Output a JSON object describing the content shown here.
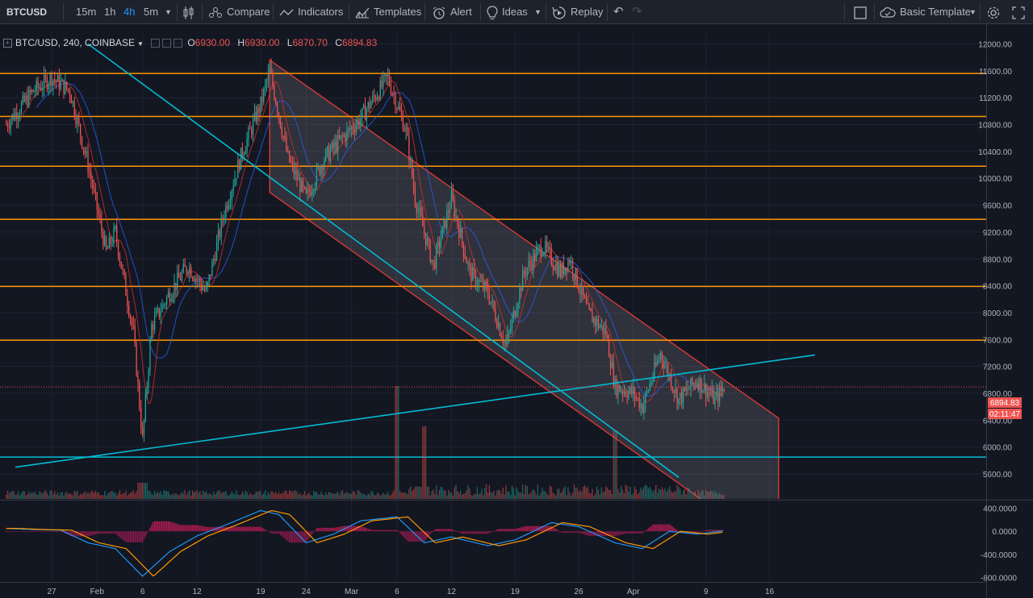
{
  "toolbar": {
    "symbol": "BTCUSD",
    "intervals": [
      "15m",
      "1h",
      "4h",
      "5m"
    ],
    "active_interval": "4h",
    "compare": "Compare",
    "indicators": "Indicators",
    "templates": "Templates",
    "alert": "Alert",
    "ideas": "Ideas",
    "replay": "Replay",
    "template_name": "Basic Template"
  },
  "legend": {
    "title": "BTC/USD, 240, COINBASE",
    "o_label": "O",
    "o": "6930.00",
    "h_label": "H",
    "h": "6930.00",
    "l_label": "L",
    "l": "6870.70",
    "c_label": "C",
    "c": "6894.83"
  },
  "price_axis": {
    "labels": [
      "12000.00",
      "11600.00",
      "11200.00",
      "10800.00",
      "10400.00",
      "10000.00",
      "9600.00",
      "9200.00",
      "8800.00",
      "8400.00",
      "8000.00",
      "7600.00",
      "7200.00",
      "6800.00",
      "6400.00",
      "6000.00",
      "5600.00"
    ],
    "current_price": "6894.83",
    "countdown": "02:11:47"
  },
  "macd_axis": {
    "labels": [
      "400.0000",
      "0.0000",
      "-400.0000",
      "-800.0000"
    ]
  },
  "time_axis": {
    "labels": [
      "27",
      "Feb",
      "6",
      "12",
      "19",
      "24",
      "Mar",
      "6",
      "12",
      "19",
      "26",
      "Apr",
      "9",
      "16"
    ]
  },
  "colors": {
    "background": "#131722",
    "up": "#26a69a",
    "down": "#ef5350",
    "horizontal_level": "#ff9800",
    "trendline": "#00bcd4",
    "channel": "#e53935",
    "ma_fast": "#d32f2f",
    "ma_slow": "#2962ff"
  },
  "chart_data": {
    "type": "candlestick",
    "symbol": "BTC/USD",
    "interval": "240",
    "exchange": "COINBASE",
    "ylim": [
      5550,
      12100
    ],
    "horizontal_levels": [
      11560,
      10920,
      10180,
      9390,
      8390,
      7590,
      5850
    ],
    "rising_trendline": [
      {
        "date": "Jan 23",
        "price": 5700
      },
      {
        "date": "Apr 21",
        "price": 7370
      }
    ],
    "falling_trendline": [
      {
        "date": "Jan 31",
        "price": 12000
      },
      {
        "date": "Apr 6",
        "price": 5550
      }
    ],
    "descending_channel": {
      "upper": [
        {
          "date": "Feb 20",
          "price": 11760
        },
        {
          "date": "Apr 17",
          "price": 6430
        }
      ],
      "lower": [
        {
          "date": "Feb 20",
          "price": 9790
        },
        {
          "date": "Apr 17",
          "price": 4400
        }
      ]
    },
    "price_path": [
      {
        "date": "Jan 22",
        "price": 10800
      },
      {
        "date": "Jan 25",
        "price": 11300
      },
      {
        "date": "Jan 27",
        "price": 11500
      },
      {
        "date": "Jan 29",
        "price": 11300
      },
      {
        "date": "Jan 31",
        "price": 10200
      },
      {
        "date": "Feb 2",
        "price": 8900
      },
      {
        "date": "Feb 3",
        "price": 9200
      },
      {
        "date": "Feb 5",
        "price": 7700
      },
      {
        "date": "Feb 6",
        "price": 6100
      },
      {
        "date": "Feb 7",
        "price": 7800
      },
      {
        "date": "Feb 9",
        "price": 8300
      },
      {
        "date": "Feb 11",
        "price": 8700
      },
      {
        "date": "Feb 13",
        "price": 8300
      },
      {
        "date": "Feb 15",
        "price": 9500
      },
      {
        "date": "Feb 17",
        "price": 10400
      },
      {
        "date": "Feb 19",
        "price": 11100
      },
      {
        "date": "Feb 20",
        "price": 11600
      },
      {
        "date": "Feb 22",
        "price": 10300
      },
      {
        "date": "Feb 24",
        "price": 9700
      },
      {
        "date": "Feb 26",
        "price": 10300
      },
      {
        "date": "Feb 28",
        "price": 10600
      },
      {
        "date": "Mar 2",
        "price": 10900
      },
      {
        "date": "Mar 5",
        "price": 11500
      },
      {
        "date": "Mar 7",
        "price": 10700
      },
      {
        "date": "Mar 8",
        "price": 9700
      },
      {
        "date": "Mar 10",
        "price": 8700
      },
      {
        "date": "Mar 12",
        "price": 9700
      },
      {
        "date": "Mar 14",
        "price": 8600
      },
      {
        "date": "Mar 16",
        "price": 8300
      },
      {
        "date": "Mar 18",
        "price": 7500
      },
      {
        "date": "Mar 20",
        "price": 8600
      },
      {
        "date": "Mar 22",
        "price": 9000
      },
      {
        "date": "Mar 24",
        "price": 8600
      },
      {
        "date": "Mar 25",
        "price": 8800
      },
      {
        "date": "Mar 27",
        "price": 8000
      },
      {
        "date": "Mar 29",
        "price": 7700
      },
      {
        "date": "Mar 30",
        "price": 6900
      },
      {
        "date": "Apr 1",
        "price": 6800
      },
      {
        "date": "Apr 2",
        "price": 6600
      },
      {
        "date": "Apr 4",
        "price": 7400
      },
      {
        "date": "Apr 6",
        "price": 6700
      },
      {
        "date": "Apr 8",
        "price": 7000
      },
      {
        "date": "Apr 10",
        "price": 6700
      },
      {
        "date": "Apr 11",
        "price": 6895
      }
    ],
    "macd_ylim": [
      -850,
      450
    ],
    "macd_path": [
      {
        "date": "Jan 22",
        "value": 50
      },
      {
        "date": "Jan 25",
        "value": 30
      },
      {
        "date": "Jan 28",
        "value": 20
      },
      {
        "date": "Jan 31",
        "value": -200
      },
      {
        "date": "Feb 3",
        "value": -300
      },
      {
        "date": "Feb 6",
        "value": -780
      },
      {
        "date": "Feb 9",
        "value": -350
      },
      {
        "date": "Feb 12",
        "value": -80
      },
      {
        "date": "Feb 15",
        "value": 100
      },
      {
        "date": "Feb 19",
        "value": 360
      },
      {
        "date": "Feb 21",
        "value": 290
      },
      {
        "date": "Feb 24",
        "value": -200
      },
      {
        "date": "Feb 27",
        "value": -50
      },
      {
        "date": "Mar 2",
        "value": 180
      },
      {
        "date": "Mar 6",
        "value": 250
      },
      {
        "date": "Mar 9",
        "value": -200
      },
      {
        "date": "Mar 12",
        "value": -100
      },
      {
        "date": "Mar 16",
        "value": -250
      },
      {
        "date": "Mar 19",
        "value": -150
      },
      {
        "date": "Mar 23",
        "value": 150
      },
      {
        "date": "Mar 26",
        "value": 80
      },
      {
        "date": "Mar 30",
        "value": -200
      },
      {
        "date": "Apr 2",
        "value": -300
      },
      {
        "date": "Apr 5",
        "value": 0
      },
      {
        "date": "Apr 8",
        "value": -50
      },
      {
        "date": "Apr 11",
        "value": 10
      }
    ]
  }
}
